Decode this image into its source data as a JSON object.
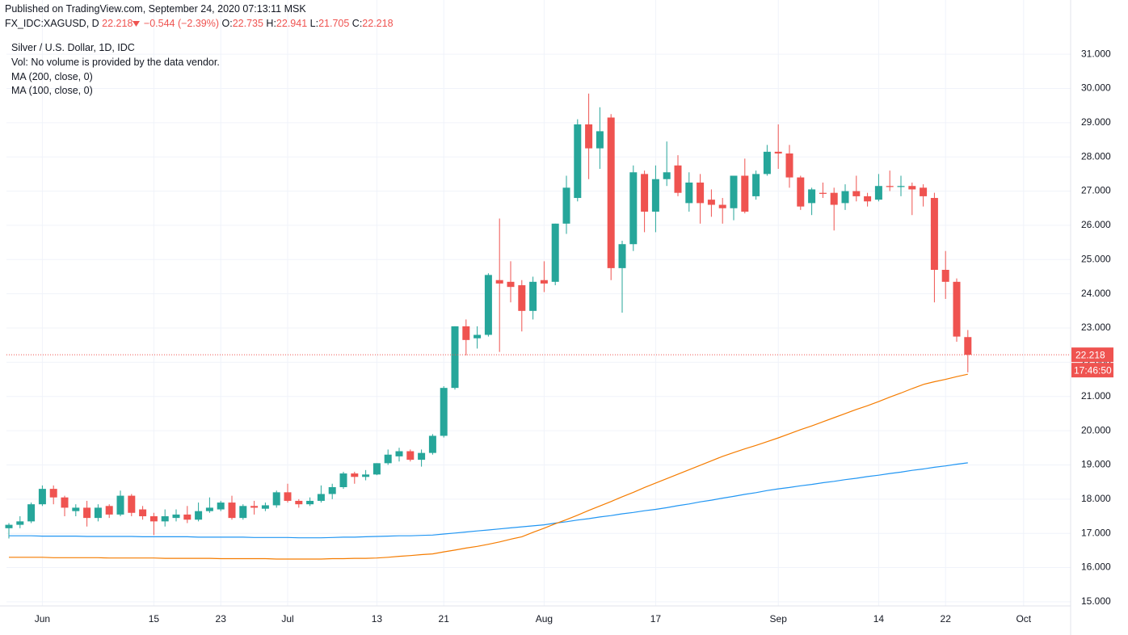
{
  "header": {
    "published": "Published on TradingView.com, September 24, 2020 07:13:11 MSK",
    "symbol": "FX_IDC:XAGUSD, D",
    "change": "−0.544 (−2.39%)",
    "ohlc_labels": [
      "O:",
      "H:",
      "L:",
      "C:"
    ]
  },
  "chart_data": {
    "type": "candlestick",
    "volume_note": "Vol: No volume is provided by the data vendor.",
    "countdown": "17:46:50",
    "up_color": "#26a69a",
    "down_color": "#ef5350",
    "categories": [
      null,
      null,
      null,
      "Jun",
      null,
      null,
      null,
      null,
      null,
      null,
      null,
      null,
      null,
      "15",
      null,
      null,
      null,
      null,
      null,
      "23",
      null,
      null,
      null,
      null,
      null,
      "Jul",
      null,
      null,
      null,
      null,
      null,
      null,
      null,
      "13",
      null,
      null,
      null,
      null,
      null,
      "21",
      null,
      null,
      null,
      null,
      null,
      null,
      null,
      null,
      "Aug",
      null,
      null,
      null,
      null,
      null,
      null,
      null,
      null,
      null,
      "17",
      null,
      null,
      null,
      null,
      null,
      null,
      null,
      null,
      null,
      null,
      "Sep",
      null,
      null,
      null,
      null,
      null,
      null,
      null,
      null,
      "14",
      null,
      null,
      null,
      null,
      null,
      "22",
      null,
      null,
      null,
      null,
      null,
      null,
      "Oct",
      null,
      null,
      null,
      null
    ],
    "series": [
      {
        "name": "Silver / U.S. Dollar, 1D, IDC",
        "type": "candlestick",
        "open": [
          17.15,
          17.25,
          17.35,
          17.85,
          18.3,
          18.05,
          17.65,
          17.75,
          17.45,
          17.8,
          17.55,
          18.1,
          17.7,
          17.5,
          17.35,
          17.45,
          17.55,
          17.4,
          17.65,
          17.7,
          17.9,
          17.45,
          17.8,
          17.72,
          17.82,
          18.2,
          17.95,
          17.85,
          17.95,
          18.15,
          18.35,
          18.75,
          18.65,
          18.72,
          19.05,
          19.25,
          19.4,
          19.15,
          19.35,
          19.85,
          21.25,
          23.05,
          22.7,
          22.8,
          24.4,
          24.35,
          24.25,
          23.5,
          24.4,
          24.35,
          26.05,
          26.8,
          28.95,
          28.25,
          29.15,
          24.75,
          25.45,
          27.5,
          26.4,
          27.35,
          27.75,
          26.65,
          27.25,
          26.75,
          26.6,
          26.5,
          27.45,
          26.85,
          27.5,
          28.15,
          28.1,
          27.4,
          26.65,
          26.95,
          26.95,
          26.65,
          27.0,
          26.85,
          26.75,
          27.15,
          27.12,
          27.15,
          27.1,
          26.8,
          24.7,
          24.35,
          22.735,
          null,
          null,
          null,
          null,
          null,
          null,
          null,
          null,
          null
        ],
        "high": [
          17.3,
          17.5,
          17.9,
          18.4,
          18.4,
          18.1,
          17.85,
          17.95,
          17.85,
          17.85,
          18.25,
          18.15,
          17.8,
          17.6,
          17.7,
          17.7,
          17.8,
          17.9,
          18.05,
          17.95,
          18.1,
          17.85,
          17.95,
          17.9,
          18.25,
          18.45,
          18.0,
          18.05,
          18.4,
          18.45,
          18.8,
          18.8,
          18.85,
          19.05,
          19.45,
          19.5,
          19.45,
          19.45,
          19.9,
          21.3,
          23.05,
          23.25,
          23.05,
          24.6,
          26.2,
          24.95,
          24.4,
          24.5,
          24.95,
          26.05,
          27.45,
          29.1,
          29.85,
          29.45,
          29.25,
          25.55,
          27.75,
          27.6,
          27.75,
          28.45,
          28.05,
          27.55,
          27.5,
          27.05,
          26.8,
          27.45,
          27.95,
          27.6,
          28.35,
          28.95,
          28.35,
          27.45,
          27.1,
          27.25,
          27.1,
          27.2,
          27.45,
          26.95,
          27.5,
          27.6,
          27.45,
          27.25,
          27.2,
          26.95,
          25.25,
          24.45,
          22.941,
          null,
          null,
          null,
          null,
          null,
          null,
          null,
          null,
          null
        ],
        "low": [
          16.85,
          17.15,
          17.3,
          17.8,
          17.85,
          17.5,
          17.5,
          17.2,
          17.35,
          17.45,
          17.5,
          17.5,
          17.4,
          16.95,
          17.2,
          17.35,
          17.3,
          17.35,
          17.6,
          17.65,
          17.4,
          17.4,
          17.55,
          17.65,
          17.75,
          17.9,
          17.75,
          17.8,
          17.9,
          18.0,
          18.3,
          18.45,
          18.55,
          18.7,
          19.0,
          19.1,
          19.1,
          18.95,
          19.3,
          19.8,
          21.2,
          22.2,
          22.4,
          22.75,
          22.3,
          23.75,
          22.9,
          23.25,
          24.05,
          24.25,
          25.75,
          26.7,
          27.35,
          27.65,
          24.4,
          23.45,
          25.25,
          25.8,
          25.8,
          27.15,
          26.85,
          26.4,
          26.05,
          26.25,
          26.05,
          26.15,
          26.35,
          26.75,
          27.45,
          27.65,
          27.1,
          26.45,
          26.3,
          26.8,
          25.85,
          26.45,
          26.7,
          26.55,
          26.7,
          27.0,
          26.85,
          26.3,
          26.55,
          23.75,
          23.85,
          22.6,
          21.705,
          null,
          null,
          null,
          null,
          null,
          null,
          null,
          null,
          null
        ],
        "close": [
          17.25,
          17.35,
          17.85,
          18.3,
          18.05,
          17.75,
          17.75,
          17.45,
          17.75,
          17.55,
          18.1,
          17.6,
          17.5,
          17.35,
          17.5,
          17.55,
          17.4,
          17.65,
          17.75,
          17.9,
          17.45,
          17.8,
          17.75,
          17.82,
          18.2,
          17.95,
          17.85,
          17.95,
          18.15,
          18.35,
          18.75,
          18.65,
          18.72,
          19.05,
          19.3,
          19.4,
          19.15,
          19.35,
          19.85,
          21.25,
          23.05,
          22.65,
          22.8,
          24.55,
          24.3,
          24.2,
          23.5,
          24.35,
          24.3,
          26.05,
          27.1,
          28.95,
          28.25,
          28.75,
          24.75,
          25.45,
          27.55,
          26.4,
          27.35,
          27.55,
          26.95,
          27.25,
          26.65,
          26.6,
          26.5,
          27.45,
          26.4,
          27.5,
          28.15,
          28.1,
          27.4,
          26.55,
          27.05,
          26.92,
          26.6,
          27.0,
          26.85,
          26.7,
          27.15,
          27.12,
          27.15,
          27.05,
          26.85,
          24.7,
          24.35,
          22.75,
          22.218,
          null,
          null,
          null,
          null,
          null,
          null,
          null,
          null,
          null
        ]
      },
      {
        "name": "MA (200, close, 0)",
        "type": "line",
        "color": "#2196f3",
        "values": [
          16.93,
          16.93,
          16.93,
          16.92,
          16.92,
          16.92,
          16.92,
          16.91,
          16.91,
          16.91,
          16.91,
          16.91,
          16.9,
          16.9,
          16.9,
          16.9,
          16.9,
          16.89,
          16.89,
          16.89,
          16.89,
          16.89,
          16.88,
          16.88,
          16.88,
          16.88,
          16.87,
          16.87,
          16.87,
          16.88,
          16.89,
          16.89,
          16.9,
          16.91,
          16.92,
          16.93,
          16.93,
          16.94,
          16.95,
          16.98,
          17.01,
          17.04,
          17.07,
          17.1,
          17.13,
          17.16,
          17.19,
          17.22,
          17.25,
          17.3,
          17.34,
          17.39,
          17.43,
          17.48,
          17.52,
          17.57,
          17.61,
          17.66,
          17.7,
          17.75,
          17.81,
          17.86,
          17.92,
          17.97,
          18.03,
          18.08,
          18.14,
          18.19,
          18.25,
          18.3,
          18.34,
          18.39,
          18.43,
          18.48,
          18.52,
          18.57,
          18.61,
          18.66,
          18.7,
          18.75,
          18.79,
          18.84,
          18.88,
          18.93,
          18.97,
          19.02,
          19.06,
          null,
          null,
          null,
          null,
          null,
          null,
          null,
          null,
          null
        ]
      },
      {
        "name": "MA (100, close, 0)",
        "type": "line",
        "color": "#f57c00",
        "values": [
          16.3,
          16.3,
          16.3,
          16.3,
          16.29,
          16.29,
          16.29,
          16.29,
          16.29,
          16.28,
          16.28,
          16.28,
          16.28,
          16.28,
          16.27,
          16.27,
          16.27,
          16.27,
          16.27,
          16.26,
          16.26,
          16.26,
          16.26,
          16.26,
          16.25,
          16.25,
          16.25,
          16.25,
          16.25,
          16.26,
          16.26,
          16.27,
          16.27,
          16.28,
          16.3,
          16.33,
          16.35,
          16.38,
          16.4,
          16.46,
          16.51,
          16.57,
          16.62,
          16.68,
          16.75,
          16.83,
          16.9,
          17.03,
          17.15,
          17.28,
          17.4,
          17.53,
          17.67,
          17.8,
          17.93,
          18.07,
          18.2,
          18.34,
          18.47,
          18.6,
          18.73,
          18.86,
          18.99,
          19.12,
          19.25,
          19.36,
          19.47,
          19.57,
          19.68,
          19.79,
          19.91,
          20.03,
          20.14,
          20.26,
          20.38,
          20.5,
          20.62,
          20.73,
          20.85,
          20.98,
          21.1,
          21.23,
          21.35,
          21.43,
          21.5,
          21.58,
          21.65,
          null,
          null,
          null,
          null,
          null,
          null,
          null,
          null,
          null
        ]
      }
    ],
    "ylim": [
      14.88,
      31.64
    ],
    "yticks": [
      {
        "value": 15,
        "label": "15.000"
      },
      {
        "value": 16,
        "label": "16.000"
      },
      {
        "value": 17,
        "label": "17.000"
      },
      {
        "value": 18,
        "label": "18.000"
      },
      {
        "value": 19,
        "label": "19.000"
      },
      {
        "value": 20,
        "label": "20.000"
      },
      {
        "value": 21,
        "label": "21.000"
      },
      {
        "value": 22,
        "label": "22.000"
      },
      {
        "value": 23,
        "label": "23.000"
      },
      {
        "value": 24,
        "label": "24.000"
      },
      {
        "value": 25,
        "label": "25.000"
      },
      {
        "value": 26,
        "label": "26.000"
      },
      {
        "value": 27,
        "label": "27.000"
      },
      {
        "value": 28,
        "label": "28.000"
      },
      {
        "value": 29,
        "label": "29.000"
      },
      {
        "value": 30,
        "label": "30.000"
      },
      {
        "value": 31,
        "label": "31.000"
      }
    ],
    "grid": true
  }
}
